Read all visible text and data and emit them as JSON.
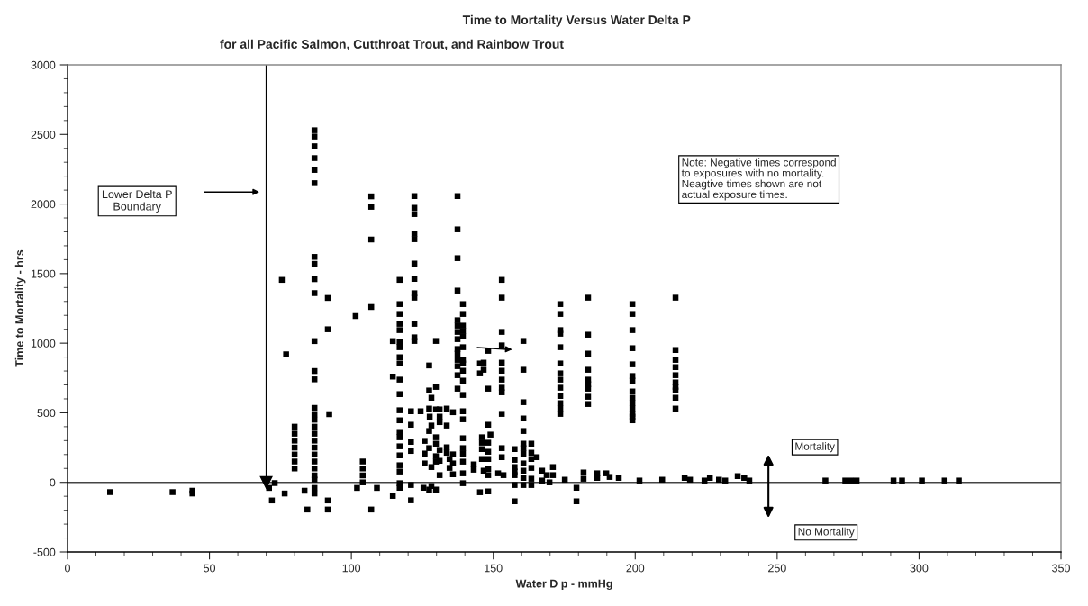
{
  "chart_data": {
    "type": "scatter",
    "title": "Time to Mortality Versus Water Delta P",
    "subtitle": "for all Pacific Salmon, Cutthroat Trout, and Rainbow Trout",
    "xlabel": "Water D p - mmHg",
    "ylabel": "Time to Mortality - hrs",
    "xlim": [
      0,
      350
    ],
    "xticks": [
      0,
      50,
      100,
      150,
      200,
      250,
      300,
      350
    ],
    "ylim": [
      -500,
      3000
    ],
    "yticks": [
      -500,
      0,
      500,
      1000,
      1500,
      2000,
      2500,
      3000
    ],
    "marker": "square",
    "ref_lines": [
      {
        "axis": "y",
        "value": 0
      },
      {
        "axis": "x",
        "value": 70,
        "label": "Lower Delta P Boundary"
      }
    ],
    "annotations": [
      "Note: Negative times correspond\nto exposures with no mortality.\nNeagtive times shown are not\nactual exposure times.",
      "Mortality",
      "No Mortality"
    ],
    "series": [
      {
        "color": "#000000",
        "x": [
          15,
          37,
          44,
          44,
          71,
          72,
          73,
          76.5,
          75.5,
          77,
          80,
          80,
          80,
          80,
          80,
          80,
          80,
          83.5,
          84.5,
          87,
          87,
          87,
          87,
          87,
          87,
          87,
          87,
          87,
          87,
          87,
          87,
          87,
          87,
          87,
          87,
          87,
          87,
          87,
          87,
          87,
          87,
          87,
          87,
          87,
          87,
          87,
          91.7,
          91.7,
          92.2,
          91.7,
          91.7,
          101.5,
          104,
          104,
          104,
          104,
          102,
          109,
          107,
          107,
          107,
          107,
          107,
          114.6,
          114.6,
          114.6,
          117,
          117,
          117,
          117,
          117,
          117,
          117,
          117,
          117,
          117,
          117,
          117,
          117,
          117,
          117,
          117,
          117,
          117,
          117,
          117,
          117,
          121,
          121,
          121,
          121,
          121,
          121,
          122.2,
          122.2,
          122.2,
          122.2,
          122.2,
          122.2,
          122.2,
          122.2,
          122.2,
          122.2,
          122.2,
          122.2,
          124.4,
          127.6,
          127.4,
          127.4,
          127.4,
          128.2,
          129.8,
          129.8,
          129.8,
          131.1,
          131.1,
          131.1,
          128.2,
          127.4,
          125.8,
          129.8,
          129.8,
          127.4,
          125.8,
          125.8,
          128.2,
          129.8,
          129.8,
          131.1,
          131.1,
          131.1,
          125.4,
          128.2,
          127.4,
          129.8,
          133.6,
          133.6,
          133.6,
          133.6,
          134.6,
          134.6,
          135.8,
          135.8,
          135.8,
          135.8,
          137.4,
          137.4,
          137.4,
          137.4,
          137.4,
          137.4,
          137.4,
          137.4,
          137.4,
          137.4,
          137.4,
          137.4,
          137.4,
          137.4,
          139.3,
          139.3,
          139.3,
          139.3,
          139.3,
          139.3,
          139.3,
          139.3,
          139.3,
          139.3,
          139.3,
          139.3,
          139.3,
          139.3,
          139.3,
          139.3,
          139.3,
          139.3,
          139.3,
          143.1,
          143.1,
          145.3,
          146.6,
          146.6,
          145.3,
          145.3,
          148.2,
          148.2,
          148.2,
          148.2,
          149,
          146,
          146,
          146,
          146,
          148.2,
          148.2,
          148.2,
          148.2,
          148.2,
          146.6,
          151.7,
          153.6,
          153,
          153,
          153,
          153,
          153,
          153,
          153,
          153,
          153,
          153,
          153,
          153,
          157.5,
          157.5,
          157.5,
          157.5,
          157.5,
          157.5,
          157.5,
          160.6,
          160.6,
          160.6,
          160.6,
          160.6,
          160.6,
          160.6,
          160.6,
          160.6,
          160.6,
          160.6,
          160.6,
          163.4,
          163.4,
          165.3,
          163.4,
          163.4,
          163.4,
          163.4,
          167.2,
          167.2,
          168.8,
          169.8,
          171,
          171,
          175.2,
          173.6,
          173.6,
          173.6,
          173.6,
          173.6,
          173.6,
          173.6,
          173.6,
          173.6,
          173.6,
          173.6,
          173.6,
          173.6,
          179.3,
          179.3,
          181.8,
          181.8,
          183.4,
          183.4,
          183.4,
          183.4,
          183.4,
          183.4,
          183.4,
          183.4,
          183.4,
          186.6,
          186.6,
          189.8,
          191,
          194.2,
          199,
          199,
          199,
          199,
          199,
          199,
          199,
          199,
          199,
          199,
          199,
          199,
          199,
          199,
          201.5,
          209.5,
          214.2,
          214.2,
          214.2,
          214.2,
          214.2,
          214.2,
          214.2,
          214.2,
          214.2,
          214.2,
          217.4,
          219.3,
          224.4,
          226.3,
          229.5,
          231.7,
          236.1,
          238.4,
          240.2,
          267,
          274,
          276,
          278,
          291,
          294,
          301,
          309,
          314
        ],
        "values": [
          -70,
          -70,
          -60,
          -80,
          -40,
          -130,
          -5,
          -80,
          1455,
          920,
          400,
          350,
          300,
          250,
          200,
          150,
          100,
          -60,
          -195,
          2530,
          2485,
          2415,
          2330,
          2245,
          2150,
          1620,
          1570,
          1460,
          1360,
          1015,
          800,
          740,
          535,
          490,
          450,
          400,
          350,
          300,
          250,
          200,
          150,
          100,
          50,
          20,
          -40,
          -80,
          1325,
          1100,
          490,
          -130,
          -195,
          1195,
          150,
          100,
          50,
          0,
          -40,
          -40,
          2055,
          1980,
          1745,
          1260,
          -195,
          1015,
          760,
          -97,
          1455,
          1281,
          1210,
          1139,
          1094,
          1009,
          971,
          899,
          854,
          738,
          634,
          518,
          446,
          362,
          324,
          259,
          194,
          123,
          78,
          -6,
          -39,
          511,
          414,
          291,
          226,
          -19,
          -129,
          2057,
          1973,
          1928,
          1786,
          1747,
          1572,
          1462,
          1359,
          1327,
          1139,
          1042,
          1016,
          511,
          472,
          530,
          840,
          660,
          608,
          686,
          1016,
          524,
          524,
          472,
          433,
          408,
          369,
          298,
          324,
          278,
          246,
          207,
          136,
          110,
          188,
          149,
          233,
          155,
          52,
          -39,
          -26,
          -52,
          -52,
          530,
          408,
          252,
          213,
          168,
          104,
          504,
          201,
          136,
          58,
          2057,
          1818,
          1611,
          1378,
          1165,
          1126,
          1081,
          1029,
          958,
          925,
          880,
          835,
          770,
          673,
          1281,
          1210,
          1126,
          1087,
          1048,
          971,
          880,
          854,
          802,
          731,
          628,
          511,
          453,
          317,
          246,
          207,
          149,
          65,
          -6,
          129,
          91,
          854,
          860,
          809,
          783,
          -71,
          -65,
          945,
          673,
          414,
          343,
          324,
          285,
          239,
          168,
          285,
          220,
          168,
          97,
          52,
          84,
          65,
          52,
          1455,
          1327,
          1081,
          984,
          860,
          802,
          738,
          680,
          647,
          492,
          246,
          181,
          239,
          162,
          110,
          78,
          52,
          -19,
          -136,
          1016,
          809,
          576,
          459,
          369,
          278,
          246,
          207,
          136,
          84,
          32,
          -19,
          213,
          278,
          181,
          168,
          104,
          26,
          -19,
          84,
          13,
          52,
          0,
          110,
          52,
          19,
          1281,
          1210,
          1094,
          1068,
          971,
          854,
          783,
          738,
          680,
          621,
          569,
          530,
          492,
          -39,
          -136,
          71,
          26,
          1327,
          1061,
          925,
          809,
          738,
          705,
          673,
          615,
          563,
          65,
          32,
          65,
          39,
          32,
          1281,
          1210,
          1094,
          964,
          848,
          764,
          731,
          653,
          608,
          569,
          530,
          492,
          472,
          446,
          13,
          19,
          1327,
          951,
          880,
          828,
          770,
          718,
          686,
          660,
          608,
          530,
          32,
          19,
          13,
          32,
          19,
          13,
          45,
          32,
          13,
          13,
          13,
          13,
          13,
          13,
          13,
          13,
          13,
          13
        ]
      }
    ]
  }
}
